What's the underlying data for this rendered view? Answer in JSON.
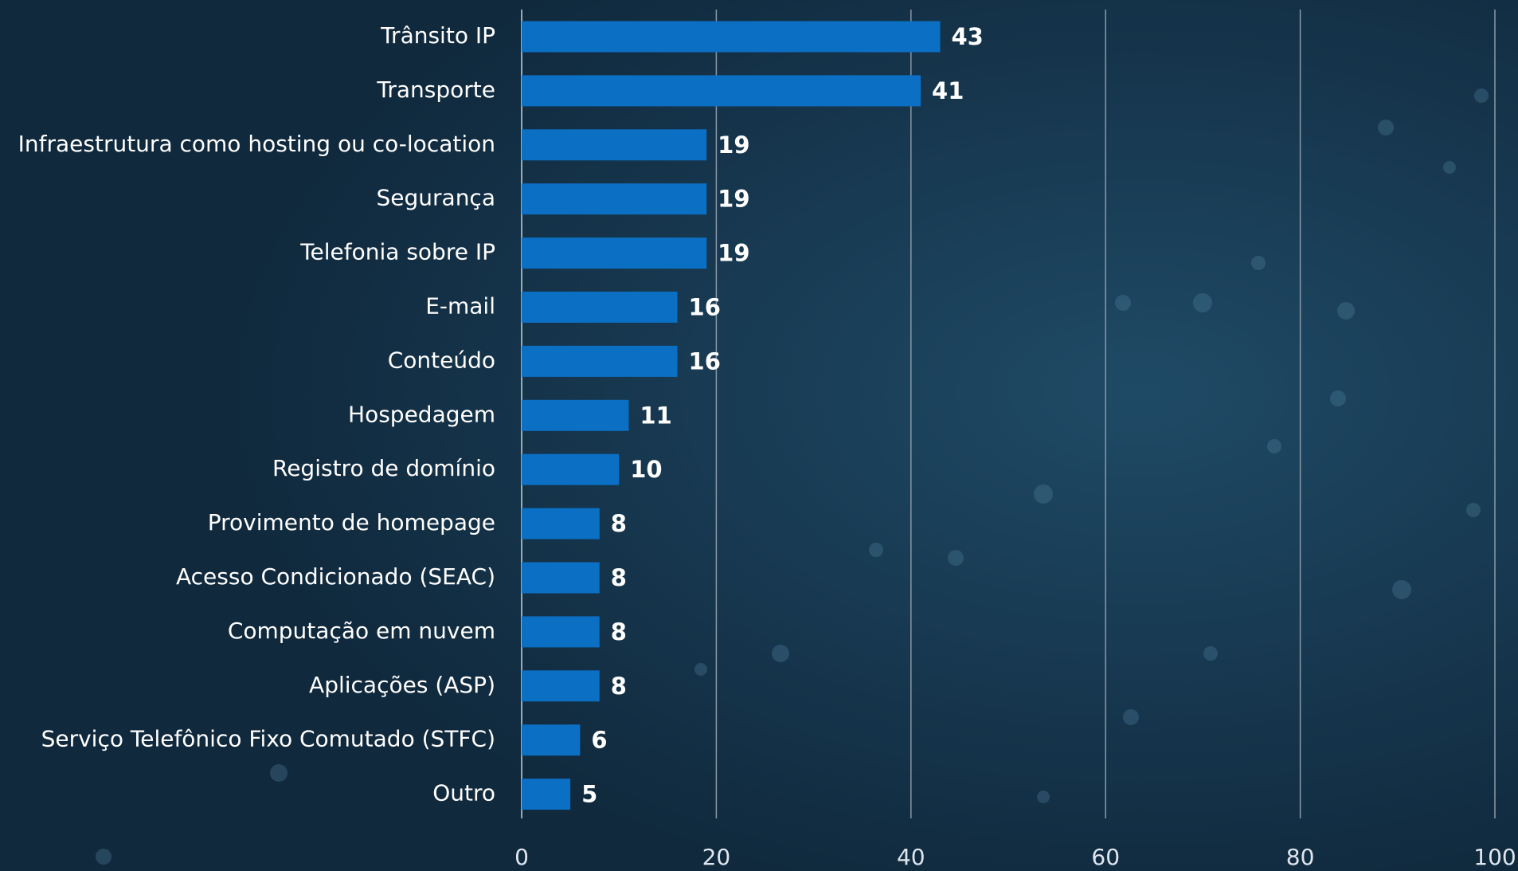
{
  "chart_data": {
    "type": "bar",
    "orientation": "horizontal",
    "categories": [
      "Trânsito IP",
      "Transporte",
      "Infraestrutura como hosting ou co-location",
      "Segurança",
      "Telefonia sobre IP",
      "E-mail",
      "Conteúdo",
      "Hospedagem",
      "Registro de domínio",
      "Provimento de homepage",
      "Acesso Condicionado (SEAC)",
      "Computação em nuvem",
      "Aplicações (ASP)",
      "Serviço Telefônico Fixo Comutado (STFC)",
      "Outro"
    ],
    "values": [
      43,
      41,
      19,
      19,
      19,
      16,
      16,
      11,
      10,
      8,
      8,
      8,
      8,
      6,
      5
    ],
    "color": "#0b6fc4",
    "xlim": [
      0,
      100
    ],
    "xticks": [
      0,
      20,
      40,
      60,
      80,
      100
    ],
    "grid": true
  }
}
